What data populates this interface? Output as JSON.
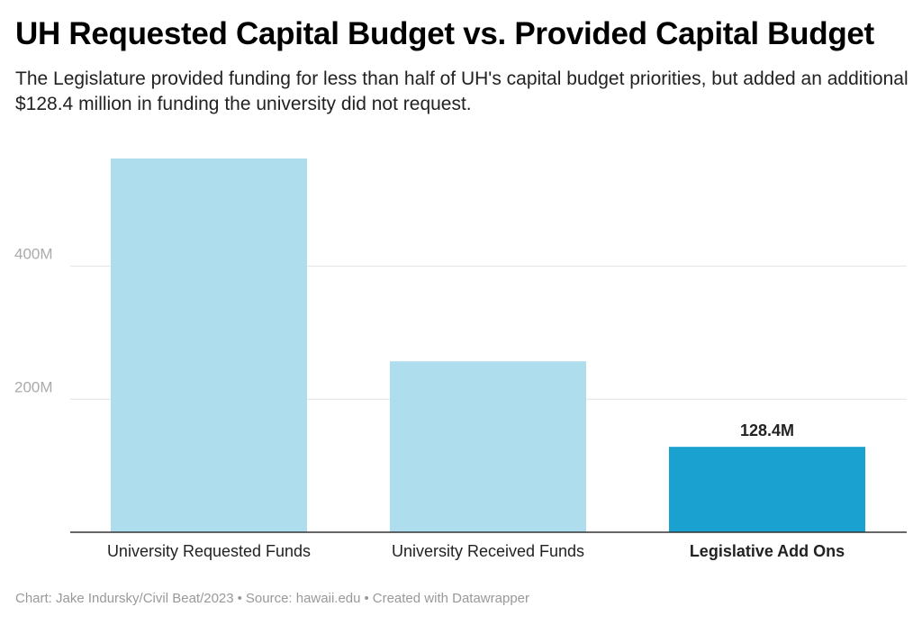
{
  "title": "UH Requested Capital Budget vs. Provided Capital Budget",
  "subtitle": "The Legislature provided funding for less than half of UH's capital budget priorities, but added an additional $128.4 million in funding the university did not request.",
  "footer": {
    "chart_credit": "Chart: Jake Indursky/Civil Beat/2023",
    "source": "Source: hawaii.edu",
    "tool": "Created with Datawrapper",
    "separator": "•"
  },
  "colors": {
    "light_bar": "#aedeed",
    "highlight_bar": "#1aa1cf",
    "grid": "#e2e2e2",
    "axis": "#333333",
    "tick_label": "#aaaaaa"
  },
  "chart_data": {
    "type": "bar",
    "categories": [
      "University Requested Funds",
      "University Received Funds",
      "Legislative Add Ons"
    ],
    "values": [
      562,
      257,
      128.4
    ],
    "highlighted": [
      false,
      false,
      true
    ],
    "data_labels": [
      "",
      "",
      "128.4M"
    ],
    "yticks": [
      200,
      400
    ],
    "ytick_labels": [
      "200M",
      "400M"
    ],
    "ylim": [
      0,
      600
    ],
    "grid": true,
    "title": "UH Requested Capital Budget vs. Provided Capital Budget",
    "xlabel": "",
    "ylabel": ""
  }
}
